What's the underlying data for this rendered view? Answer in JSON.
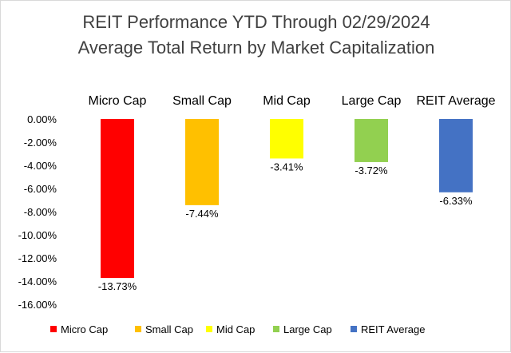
{
  "chart_data": {
    "type": "bar",
    "title": "REIT Performance YTD Through 02/29/2024",
    "subtitle": "Average Total Return by Market Capitalization",
    "categories": [
      "Micro Cap",
      "Small Cap",
      "Mid Cap",
      "Large Cap",
      "REIT Average"
    ],
    "values": [
      -13.73,
      -7.44,
      -3.41,
      -3.72,
      -6.33
    ],
    "data_labels": [
      "-13.73%",
      "-7.44%",
      "-3.41%",
      "-3.72%",
      "-6.33%"
    ],
    "colors": [
      "#ff0000",
      "#ffc000",
      "#ffff00",
      "#92d050",
      "#4472c4"
    ],
    "ylim": [
      -16,
      0
    ],
    "y_ticks": [
      0,
      -2,
      -4,
      -6,
      -8,
      -10,
      -12,
      -14,
      -16
    ],
    "y_tick_labels": [
      "0.00%",
      "-2.00%",
      "-4.00%",
      "-6.00%",
      "-8.00%",
      "-10.00%",
      "-12.00%",
      "-14.00%",
      "-16.00%"
    ],
    "category_labels_position": "top",
    "legend_position": "bottom",
    "legend": [
      "Micro Cap",
      "Small Cap",
      "Mid Cap",
      "Large Cap",
      "REIT Average"
    ],
    "grid": false
  }
}
